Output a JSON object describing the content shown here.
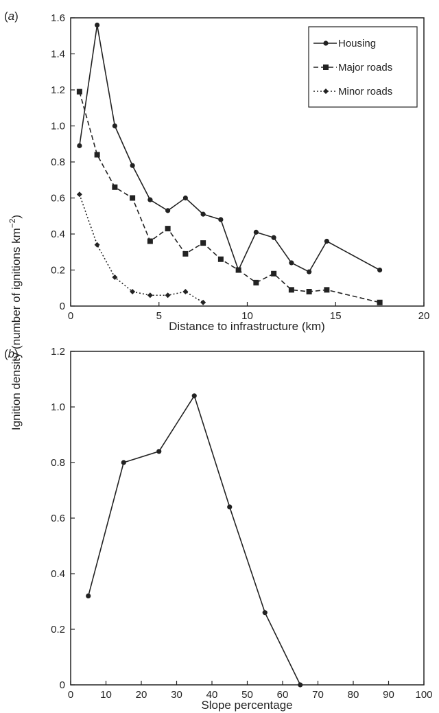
{
  "chart_data": [
    {
      "panel": "(a)",
      "type": "line",
      "title": "",
      "xlabel": "Distance to infrastructure (km)",
      "ylabel": "",
      "xlim": [
        0,
        20
      ],
      "ylim": [
        0,
        1.6
      ],
      "xticks": [
        "0",
        "5",
        "10",
        "15",
        "20"
      ],
      "yticks": [
        "0",
        "0.2",
        "0.4",
        "0.6",
        "0.8",
        "1.0",
        "1.2",
        "1.4",
        "1.6"
      ],
      "grid": false,
      "legend_position": "top-right",
      "series": [
        {
          "name": "Housing",
          "marker": "circle",
          "line_style": "solid",
          "x": [
            0.5,
            1.5,
            2.5,
            3.5,
            4.5,
            5.5,
            6.5,
            7.5,
            8.5,
            9.5,
            10.5,
            11.5,
            12.5,
            13.5,
            14.5,
            17.5
          ],
          "y": [
            0.89,
            1.56,
            1.0,
            0.78,
            0.59,
            0.53,
            0.6,
            0.51,
            0.48,
            0.2,
            0.41,
            0.38,
            0.24,
            0.19,
            0.36,
            0.2
          ]
        },
        {
          "name": "Major roads",
          "marker": "square",
          "line_style": "dashed",
          "x": [
            0.5,
            1.5,
            2.5,
            3.5,
            4.5,
            5.5,
            6.5,
            7.5,
            8.5,
            9.5,
            10.5,
            11.5,
            12.5,
            13.5,
            14.5,
            17.5
          ],
          "y": [
            1.19,
            0.84,
            0.66,
            0.6,
            0.36,
            0.43,
            0.29,
            0.35,
            0.26,
            0.2,
            0.13,
            0.18,
            0.09,
            0.08,
            0.09,
            0.02
          ]
        },
        {
          "name": "Minor roads",
          "marker": "diamond",
          "line_style": "dotted",
          "x": [
            0.5,
            1.5,
            2.5,
            3.5,
            4.5,
            5.5,
            6.5,
            7.5
          ],
          "y": [
            0.62,
            0.34,
            0.16,
            0.08,
            0.06,
            0.06,
            0.08,
            0.02
          ]
        }
      ]
    },
    {
      "panel": "(b)",
      "type": "line",
      "title": "",
      "xlabel": "Slope percentage",
      "ylabel": "",
      "xlim": [
        0,
        100
      ],
      "ylim": [
        0,
        1.2
      ],
      "xticks": [
        "0",
        "10",
        "20",
        "30",
        "40",
        "50",
        "60",
        "70",
        "80",
        "90",
        "100"
      ],
      "yticks": [
        "0",
        "0.2",
        "0.4",
        "0.6",
        "0.8",
        "1.0",
        "1.2"
      ],
      "grid": false,
      "series": [
        {
          "marker": "circle",
          "line_style": "solid",
          "x": [
            5,
            15,
            25,
            35,
            45,
            55,
            65
          ],
          "y": [
            0.32,
            0.8,
            0.84,
            1.04,
            0.64,
            0.26,
            0.0
          ]
        }
      ]
    }
  ],
  "shared_ylabel": "Ignition density (number of ignitions km",
  "shared_ylabel_superscript": "−2",
  "shared_ylabel_suffix": ")",
  "colors": {
    "line": "#222222",
    "axis": "#222222"
  }
}
